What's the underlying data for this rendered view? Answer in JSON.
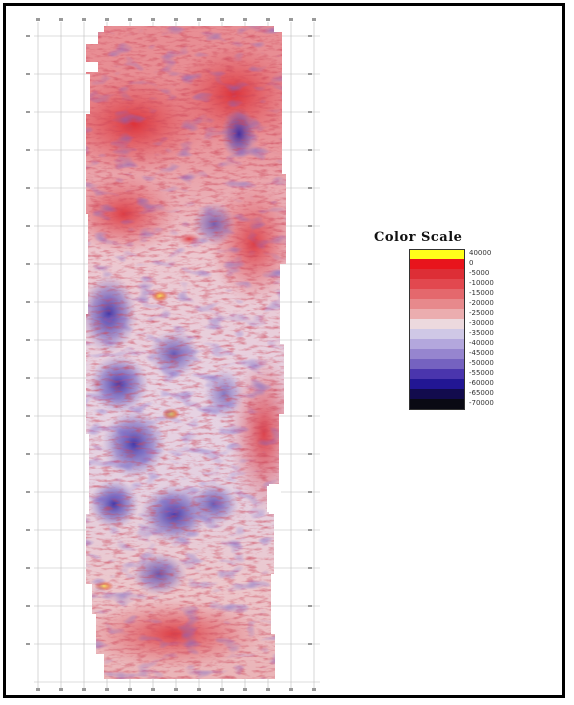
{
  "figure": {
    "legend": {
      "title": "Color Scale",
      "entries": [
        {
          "label": "40000",
          "color": "#ffff1a"
        },
        {
          "label": "0",
          "color": "#e8141c"
        },
        {
          "label": "-5000",
          "color": "#dd2e36"
        },
        {
          "label": "-10000",
          "color": "#e2484f"
        },
        {
          "label": "-15000",
          "color": "#e4686d"
        },
        {
          "label": "-20000",
          "color": "#e7898c"
        },
        {
          "label": "-25000",
          "color": "#ebadaf"
        },
        {
          "label": "-30000",
          "color": "#ecd9de"
        },
        {
          "label": "-35000",
          "color": "#cfc8e6"
        },
        {
          "label": "-40000",
          "color": "#b3a7dd"
        },
        {
          "label": "-45000",
          "color": "#9685cf"
        },
        {
          "label": "-50000",
          "color": "#7562c0"
        },
        {
          "label": "-55000",
          "color": "#4a35ad"
        },
        {
          "label": "-60000",
          "color": "#221694"
        },
        {
          "label": "-65000",
          "color": "#120b4d"
        },
        {
          "label": "-70000",
          "color": "#0a0a14"
        }
      ]
    }
  }
}
